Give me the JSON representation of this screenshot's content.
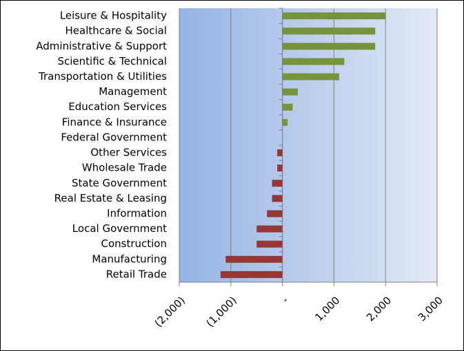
{
  "chart_data": {
    "type": "bar",
    "orientation": "horizontal",
    "categories": [
      "Leisure & Hospitality",
      "Healthcare & Social",
      "Administrative & Support",
      "Scientific & Technical",
      "Transportation & Utilities",
      "Management",
      "Education Services",
      "Finance & Insurance",
      "Federal Government",
      "Other Services",
      "Wholesale Trade",
      "State Government",
      "Real Estate & Leasing",
      "Information",
      "Local Government",
      "Construction",
      "Manufacturing",
      "Retail Trade"
    ],
    "values": [
      2000,
      1800,
      1800,
      1200,
      1100,
      300,
      200,
      100,
      0,
      -100,
      -100,
      -200,
      -200,
      -300,
      -500,
      -500,
      -1100,
      -1200
    ],
    "color_positive": "#77933c",
    "color_negative": "#953735",
    "xlim": [
      -2000,
      3000
    ],
    "xticks": [
      {
        "value": -2000,
        "label": "(2,000)"
      },
      {
        "value": -1000,
        "label": "(1,000)"
      },
      {
        "value": 0,
        "label": "-"
      },
      {
        "value": 1000,
        "label": "1,000"
      },
      {
        "value": 2000,
        "label": "2,000"
      },
      {
        "value": 3000,
        "label": "3,000"
      }
    ],
    "grid": true
  }
}
